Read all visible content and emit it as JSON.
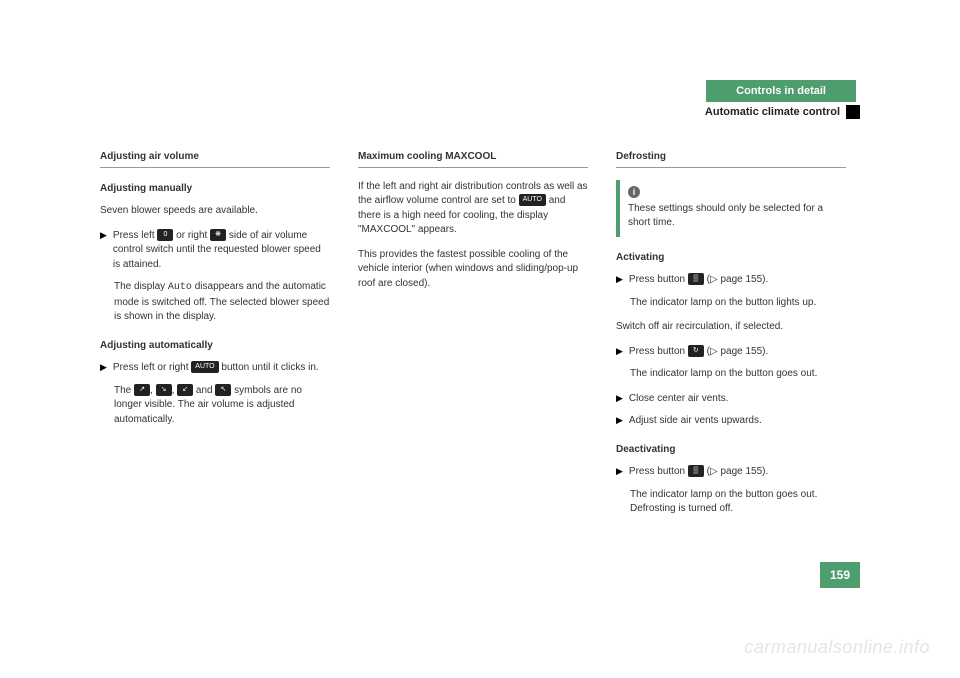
{
  "header": {
    "chapter": "Controls in detail",
    "section": "Automatic climate control"
  },
  "col1": {
    "h3": "Adjusting air volume",
    "h4a": "Adjusting manually",
    "p1": "Seven blower speeds are available.",
    "b1": "Press left",
    "b1b": "or right",
    "b1c": "side of air volume control switch until the requested blower speed is attained.",
    "p2a": "The display",
    "p2b": "Auto",
    "p2c": "disappears and the automatic mode is switched off. The selected blower speed is shown in the display.",
    "h4b": "Adjusting automatically",
    "b2a": "Press left or right",
    "b2b": "button until it clicks in.",
    "p3a": "The",
    "p3b": "and",
    "p3c": "symbols are no longer visible. The air volume is adjusted automatically.",
    "icon0": "0",
    "iconFan": "❋",
    "iconAuto": "AUTO",
    "iconA": "↗",
    "iconB": "↘",
    "iconC": "↙",
    "iconD": "↖"
  },
  "col2": {
    "h3": "Maximum cooling MAXCOOL",
    "p1": "If the left and right air distribution controls as well as the airflow volume control are set to",
    "p1b": "and there is a high need for cooling, the display \"MAXCOOL\" appears.",
    "p2": "This provides the fastest possible cooling of the vehicle interior (when windows and sliding/pop-up roof are closed).",
    "iconAuto": "AUTO"
  },
  "col3": {
    "h3": "Defrosting",
    "info": "These settings should only be selected for a short time.",
    "h4a": "Activating",
    "b1a": "Press button",
    "b1b": "(▷ page 155).",
    "p1": "The indicator lamp on the button lights up.",
    "p2": "Switch off air recirculation, if selected.",
    "b2a": "Press button",
    "b2b": "(▷ page 155).",
    "p3": "The indicator lamp on the button goes out.",
    "b3": "Close center air vents.",
    "b4": "Adjust side air vents upwards.",
    "h4b": "Deactivating",
    "b5a": "Press button",
    "b5b": "(▷ page 155).",
    "p4": "The indicator lamp on the button goes out. Defrosting is turned off.",
    "iconDefrost": "▒",
    "iconRecirc": "↻"
  },
  "pageNumber": "159",
  "watermark": "carmanualsonline.info"
}
